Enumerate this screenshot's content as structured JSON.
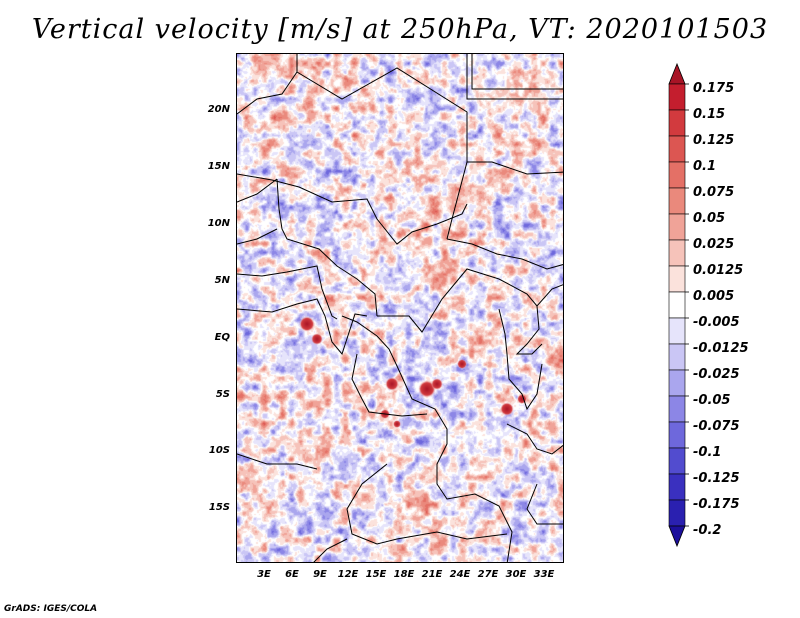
{
  "title": "Vertical velocity [m/s] at 250hPa, VT: 2020101503",
  "footer": "GrADS: IGES/COLA",
  "y_axis_labels": [
    "20N",
    "15N",
    "10N",
    "5N",
    "EQ",
    "5S",
    "10S",
    "15S"
  ],
  "x_axis_labels": [
    "3E",
    "6E",
    "9E",
    "12E",
    "15E",
    "18E",
    "21E",
    "24E",
    "27E",
    "30E",
    "33E"
  ],
  "colorbar": {
    "labels": [
      "0.175",
      "0.15",
      "0.125",
      "0.1",
      "0.075",
      "0.05",
      "0.025",
      "0.0125",
      "0.005",
      "-0.005",
      "-0.0125",
      "-0.025",
      "-0.05",
      "-0.075",
      "-0.1",
      "-0.125",
      "-0.175",
      "-0.2"
    ],
    "colors": [
      "#a81426",
      "#c41e2e",
      "#d23a3e",
      "#dc5652",
      "#e47066",
      "#ea897c",
      "#f0a398",
      "#f6c3ba",
      "#fbe2dc",
      "#ffffff",
      "#e6e4fb",
      "#cac6f5",
      "#aaa6ee",
      "#8c86e6",
      "#6e68dc",
      "#524ccf",
      "#3a30bf",
      "#2a20b0",
      "#1c0f9c"
    ]
  },
  "map": {
    "lat_range": [
      -20,
      25
    ],
    "lon_range": [
      0,
      35
    ]
  },
  "chart_data": {
    "type": "heatmap",
    "title": "Vertical velocity [m/s] at 250hPa, VT: 2020101503",
    "variable": "Vertical velocity",
    "units": "m/s",
    "level": "250hPa",
    "valid_time": "2020101503",
    "x_ticks": [
      "3E",
      "6E",
      "9E",
      "12E",
      "15E",
      "18E",
      "21E",
      "24E",
      "27E",
      "30E",
      "33E"
    ],
    "y_ticks": [
      "20N",
      "15N",
      "10N",
      "5N",
      "EQ",
      "5S",
      "10S",
      "15S"
    ],
    "color_levels": [
      -0.2,
      -0.175,
      -0.125,
      -0.1,
      -0.075,
      -0.05,
      -0.025,
      -0.0125,
      -0.005,
      0.005,
      0.0125,
      0.025,
      0.05,
      0.075,
      0.1,
      0.125,
      0.15,
      0.175
    ]
  }
}
